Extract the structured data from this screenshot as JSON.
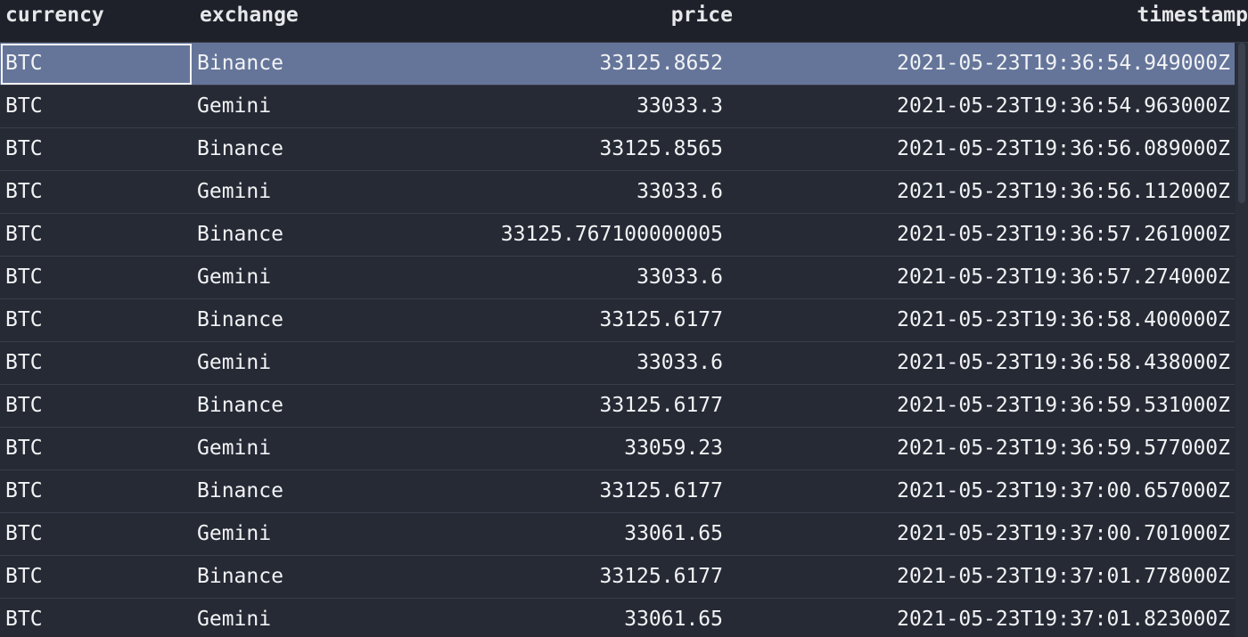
{
  "table": {
    "columns": {
      "currency": "currency",
      "exchange": "exchange",
      "price": "price",
      "timestamp": "timestamp"
    },
    "selected_row_index": 0,
    "rows": [
      {
        "currency": "BTC",
        "exchange": "Binance",
        "price": "33125.8652",
        "timestamp": "2021-05-23T19:36:54.949000Z"
      },
      {
        "currency": "BTC",
        "exchange": "Gemini",
        "price": "33033.3",
        "timestamp": "2021-05-23T19:36:54.963000Z"
      },
      {
        "currency": "BTC",
        "exchange": "Binance",
        "price": "33125.8565",
        "timestamp": "2021-05-23T19:36:56.089000Z"
      },
      {
        "currency": "BTC",
        "exchange": "Gemini",
        "price": "33033.6",
        "timestamp": "2021-05-23T19:36:56.112000Z"
      },
      {
        "currency": "BTC",
        "exchange": "Binance",
        "price": "33125.767100000005",
        "timestamp": "2021-05-23T19:36:57.261000Z"
      },
      {
        "currency": "BTC",
        "exchange": "Gemini",
        "price": "33033.6",
        "timestamp": "2021-05-23T19:36:57.274000Z"
      },
      {
        "currency": "BTC",
        "exchange": "Binance",
        "price": "33125.6177",
        "timestamp": "2021-05-23T19:36:58.400000Z"
      },
      {
        "currency": "BTC",
        "exchange": "Gemini",
        "price": "33033.6",
        "timestamp": "2021-05-23T19:36:58.438000Z"
      },
      {
        "currency": "BTC",
        "exchange": "Binance",
        "price": "33125.6177",
        "timestamp": "2021-05-23T19:36:59.531000Z"
      },
      {
        "currency": "BTC",
        "exchange": "Gemini",
        "price": "33059.23",
        "timestamp": "2021-05-23T19:36:59.577000Z"
      },
      {
        "currency": "BTC",
        "exchange": "Binance",
        "price": "33125.6177",
        "timestamp": "2021-05-23T19:37:00.657000Z"
      },
      {
        "currency": "BTC",
        "exchange": "Gemini",
        "price": "33061.65",
        "timestamp": "2021-05-23T19:37:00.701000Z"
      },
      {
        "currency": "BTC",
        "exchange": "Binance",
        "price": "33125.6177",
        "timestamp": "2021-05-23T19:37:01.778000Z"
      },
      {
        "currency": "BTC",
        "exchange": "Gemini",
        "price": "33061.65",
        "timestamp": "2021-05-23T19:37:01.823000Z"
      }
    ]
  },
  "colors": {
    "background": "#262a35",
    "header_background": "#1e2129",
    "selected_row": "#65759a",
    "text": "#f2f3f5"
  }
}
